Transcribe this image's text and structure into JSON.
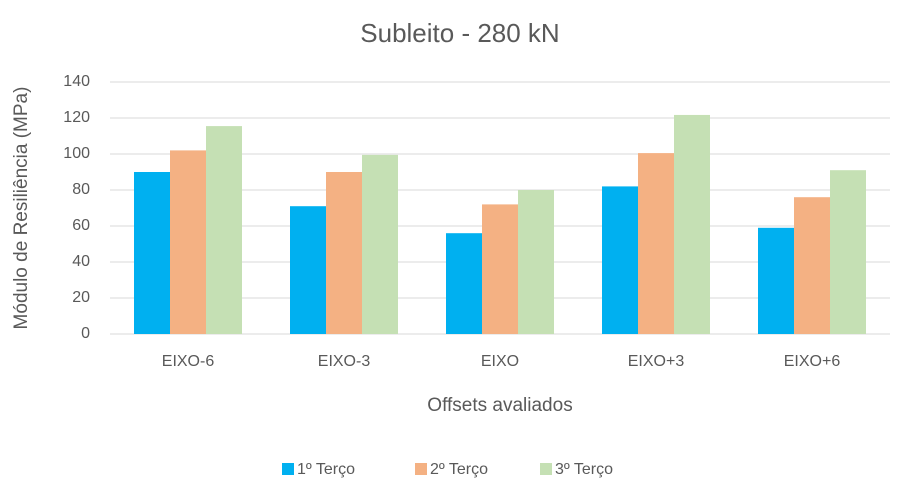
{
  "chart_data": {
    "type": "bar",
    "title": "Subleito - 280 kN",
    "x_label": "Offsets avaliados",
    "y_label": "Módulo de Resiliência (MPa)",
    "categories": [
      "EIXO-6",
      "EIXO-3",
      "EIXO",
      "EIXO+3",
      "EIXO+6"
    ],
    "series": [
      {
        "name": "1º Terço",
        "color": "#00b0f0",
        "values": [
          90,
          71,
          56,
          82,
          59
        ]
      },
      {
        "name": "2º Terço",
        "color": "#f4b183",
        "values": [
          102,
          90,
          72,
          100.5,
          76
        ]
      },
      {
        "name": "3º Terço",
        "color": "#c5e0b4",
        "values": [
          115.5,
          99.5,
          80,
          121.7,
          91
        ]
      }
    ],
    "ylim": [
      0,
      140
    ],
    "yticks": [
      0,
      20,
      40,
      60,
      80,
      100,
      120,
      140
    ],
    "grid": true,
    "legend": "bottom"
  }
}
